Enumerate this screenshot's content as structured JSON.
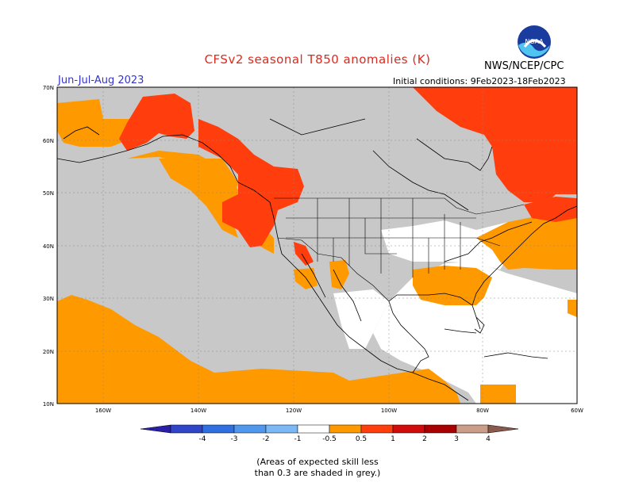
{
  "header": {
    "title": "CFSv2 seasonal T850 anomalies (K)",
    "agency": "NWS/NCEP/CPC",
    "season": "Jun-Jul-Aug 2023",
    "initial_conditions": "Initial conditions: 9Feb2023-18Feb2023",
    "logo_text": "NOAA"
  },
  "axes": {
    "lat_labels": [
      "70N",
      "60N",
      "50N",
      "40N",
      "30N",
      "20N",
      "10N"
    ],
    "lon_labels": [
      "160W",
      "140W",
      "120W",
      "100W",
      "80W",
      "60W"
    ]
  },
  "legend": {
    "labels": [
      "-4",
      "-3",
      "-2",
      "-1",
      "-0.5",
      "0.5",
      "1",
      "2",
      "3",
      "4"
    ],
    "colors": [
      "#2a1fa8",
      "#3044c8",
      "#2f6fe0",
      "#4f98ee",
      "#7cb8f5",
      "#ffffff",
      "#ff9900",
      "#ff3d0d",
      "#d10a0a",
      "#a80000",
      "#c99d88",
      "#8a5a4e"
    ]
  },
  "note": {
    "line1": "(Areas of expected skill less",
    "line2": "than 0.3 are shaded in grey.)"
  },
  "colors": {
    "grey": "#c8c8c8",
    "orange": "#ff9900",
    "red": "#ff3d0d"
  }
}
